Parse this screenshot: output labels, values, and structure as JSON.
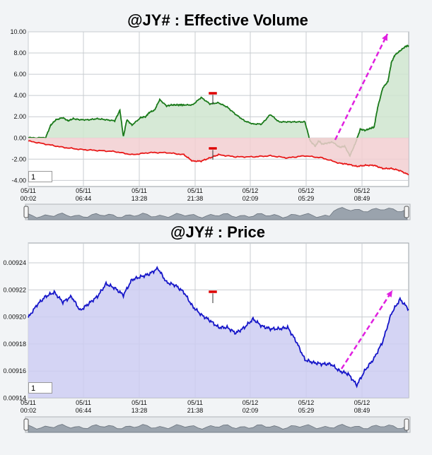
{
  "chart_data": [
    {
      "type": "area",
      "title": "@JY# : Effective Volume",
      "y_ticks": [
        "10.00",
        "8.00",
        "6.00",
        "4.00",
        "2.00",
        "0.00",
        "-2.00",
        "-4.00"
      ],
      "ylim": [
        -4.6,
        10.0
      ],
      "x_ticks": [
        {
          "date": "05/11",
          "time": "00:02"
        },
        {
          "date": "05/11",
          "time": "06:44"
        },
        {
          "date": "05/11",
          "time": "13:28"
        },
        {
          "date": "05/11",
          "time": "21:38"
        },
        {
          "date": "05/12",
          "time": "02:09"
        },
        {
          "date": "05/12",
          "time": "05:29"
        },
        {
          "date": "05/12",
          "time": "08:49"
        }
      ],
      "grid": true,
      "zoom_value": "1",
      "series": [
        {
          "color": "#1a7a1a",
          "fill": "#cfe5cf",
          "x": [
            0,
            1,
            1.3,
            1.6,
            2,
            2.3,
            2.6,
            3,
            3.5,
            4,
            4.5,
            5,
            5.3,
            5.5,
            5.7,
            6,
            6.5,
            6.8,
            7,
            7.3,
            7.6,
            8,
            8.3,
            8.6,
            8.8,
            9,
            9.5,
            10,
            10.5,
            11,
            11.5,
            12,
            12.5,
            13,
            13.5,
            14,
            14.5,
            15,
            15.5,
            16,
            16.3,
            16.6,
            16.8,
            17,
            17.3,
            17.6,
            18,
            18.3,
            18.6,
            18.9,
            19.2,
            19.5,
            19.8,
            20,
            20.2,
            20.5,
            20.8,
            21,
            21.2,
            21.5,
            21.8,
            22
          ],
          "values": [
            0,
            0,
            1.2,
            1.7,
            1.9,
            1.6,
            1.8,
            1.7,
            1.7,
            1.8,
            1.7,
            1.6,
            2.6,
            0.1,
            1.7,
            1.2,
            1.9,
            2.0,
            2.4,
            2.6,
            3.6,
            3.0,
            3.1,
            3.1,
            3.1,
            3.1,
            3.1,
            3.8,
            3.2,
            3.3,
            2.9,
            2.2,
            1.6,
            1.3,
            1.3,
            2.2,
            1.5,
            1.5,
            1.5,
            1.5,
            -0.3,
            -0.8,
            -0.3,
            -0.6,
            -0.5,
            -0.4,
            -0.9,
            -0.8,
            -1.7,
            -0.6,
            0.8,
            0.7,
            0.9,
            1.0,
            2.8,
            4.7,
            5.3,
            7.1,
            7.8,
            8.2,
            8.6,
            8.7
          ]
        },
        {
          "color": "#e81818",
          "fill": "#f2cfd1",
          "x": [
            0,
            1,
            2,
            3,
            4,
            5,
            6,
            7,
            8,
            9,
            9.5,
            10,
            10.5,
            11,
            12,
            13,
            14,
            15,
            16,
            17,
            18,
            18.5,
            19,
            19.5,
            20,
            20.5,
            21,
            21.5,
            22
          ],
          "values": [
            -0.3,
            -0.6,
            -0.9,
            -1.1,
            -1.2,
            -1.3,
            -1.6,
            -1.4,
            -1.4,
            -1.6,
            -2.2,
            -2.2,
            -1.9,
            -1.6,
            -1.8,
            -1.8,
            -1.7,
            -1.9,
            -1.7,
            -1.9,
            -2.4,
            -2.5,
            -2.7,
            -2.6,
            -2.6,
            -2.9,
            -2.9,
            -3.1,
            -3.5
          ]
        }
      ]
    },
    {
      "type": "area",
      "title": "@JY# : Price",
      "y_ticks": [
        "0.00924",
        "0.00922",
        "0.00920",
        "0.00918",
        "0.00916",
        "0.00914"
      ],
      "ylim": [
        0.00914,
        0.00925
      ],
      "x_ticks": [
        {
          "date": "05/11",
          "time": "00:02"
        },
        {
          "date": "05/11",
          "time": "06:44"
        },
        {
          "date": "05/11",
          "time": "13:28"
        },
        {
          "date": "05/11",
          "time": "21:38"
        },
        {
          "date": "05/12",
          "time": "02:09"
        },
        {
          "date": "05/12",
          "time": "05:29"
        },
        {
          "date": "05/12",
          "time": "08:49"
        }
      ],
      "grid": true,
      "zoom_value": "1",
      "series": [
        {
          "color": "#1515c8",
          "fill": "#ccccf2",
          "x": [
            0,
            0.5,
            1,
            1.5,
            2,
            2.5,
            3,
            3.5,
            4,
            4.5,
            5,
            5.5,
            6,
            6.5,
            7,
            7.5,
            8,
            8.5,
            9,
            9.5,
            10,
            10.5,
            11,
            11.5,
            12,
            12.5,
            13,
            13.5,
            14,
            14.5,
            15,
            15.5,
            16,
            16.5,
            17,
            17.5,
            18,
            18.5,
            19,
            19.5,
            20,
            20.5,
            21,
            21.5,
            22
          ],
          "values": [
            0.009197,
            0.009206,
            0.009212,
            0.009215,
            0.009208,
            0.009212,
            0.009202,
            0.009207,
            0.009212,
            0.009221,
            0.009218,
            0.009213,
            0.009224,
            0.009226,
            0.009228,
            0.009232,
            0.009222,
            0.00922,
            0.009215,
            0.009205,
            0.009199,
            0.009195,
            0.00919,
            0.00919,
            0.009186,
            0.00919,
            0.009196,
            0.009191,
            0.009189,
            0.009189,
            0.00919,
            0.00918,
            0.009167,
            0.009165,
            0.009164,
            0.009164,
            0.009159,
            0.009157,
            0.009149,
            0.00916,
            0.009168,
            0.00918,
            0.0092,
            0.00921,
            0.009203
          ]
        }
      ]
    }
  ]
}
